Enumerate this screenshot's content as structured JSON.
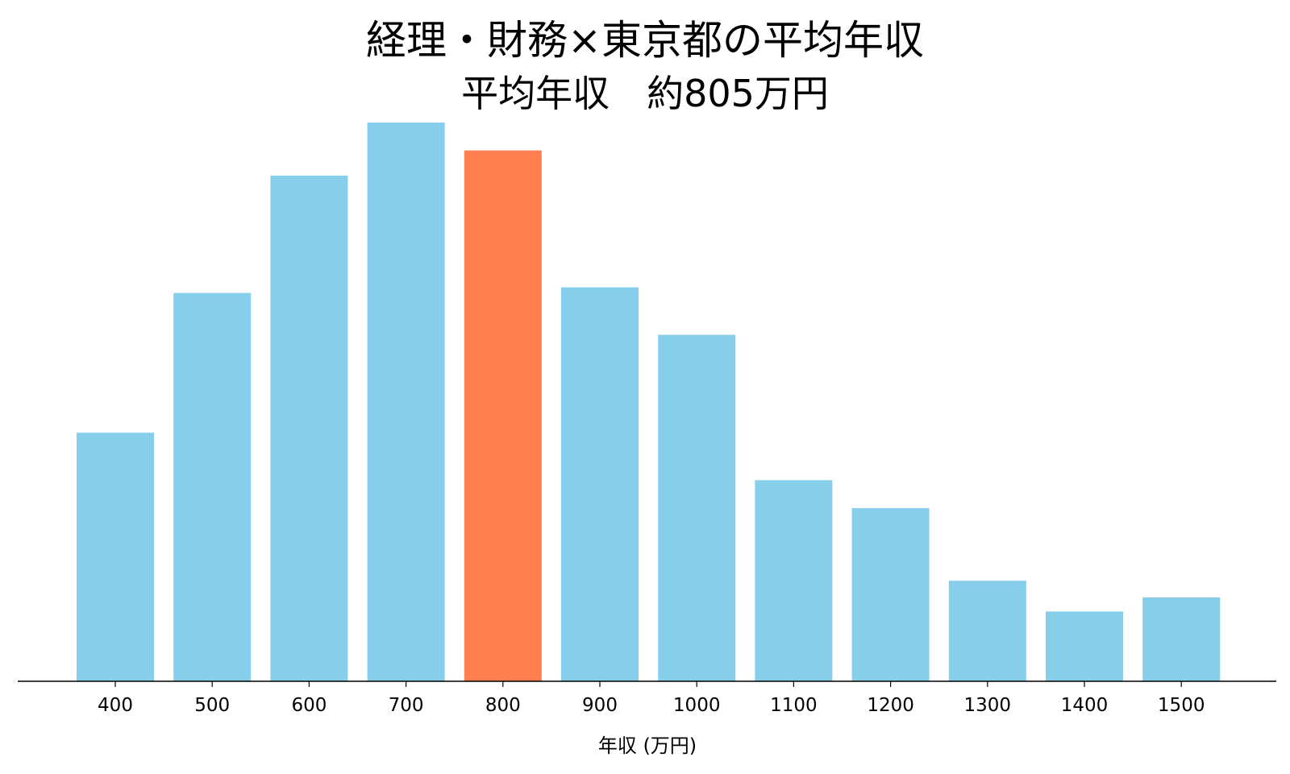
{
  "chart_data": {
    "type": "bar",
    "title": "経理・財務×東京都の平均年収",
    "subtitle": "平均年収　約805万円",
    "xlabel": "年収 (万円)",
    "ylabel": "",
    "categories": [
      "400",
      "500",
      "600",
      "700",
      "800",
      "900",
      "1000",
      "1100",
      "1200",
      "1300",
      "1400",
      "1500"
    ],
    "values": [
      44.5,
      69.5,
      90.5,
      100.0,
      95.0,
      70.5,
      62.0,
      36.0,
      31.0,
      18.0,
      12.5,
      15.0
    ],
    "highlight_category": "800",
    "ylim": [
      0,
      100
    ],
    "grid": false,
    "legend": "none",
    "show_y_axis": false,
    "colors": {
      "bar": "#87CEEB",
      "highlight": "#FF7F50",
      "axis": "#000000",
      "text": "#000000"
    }
  }
}
